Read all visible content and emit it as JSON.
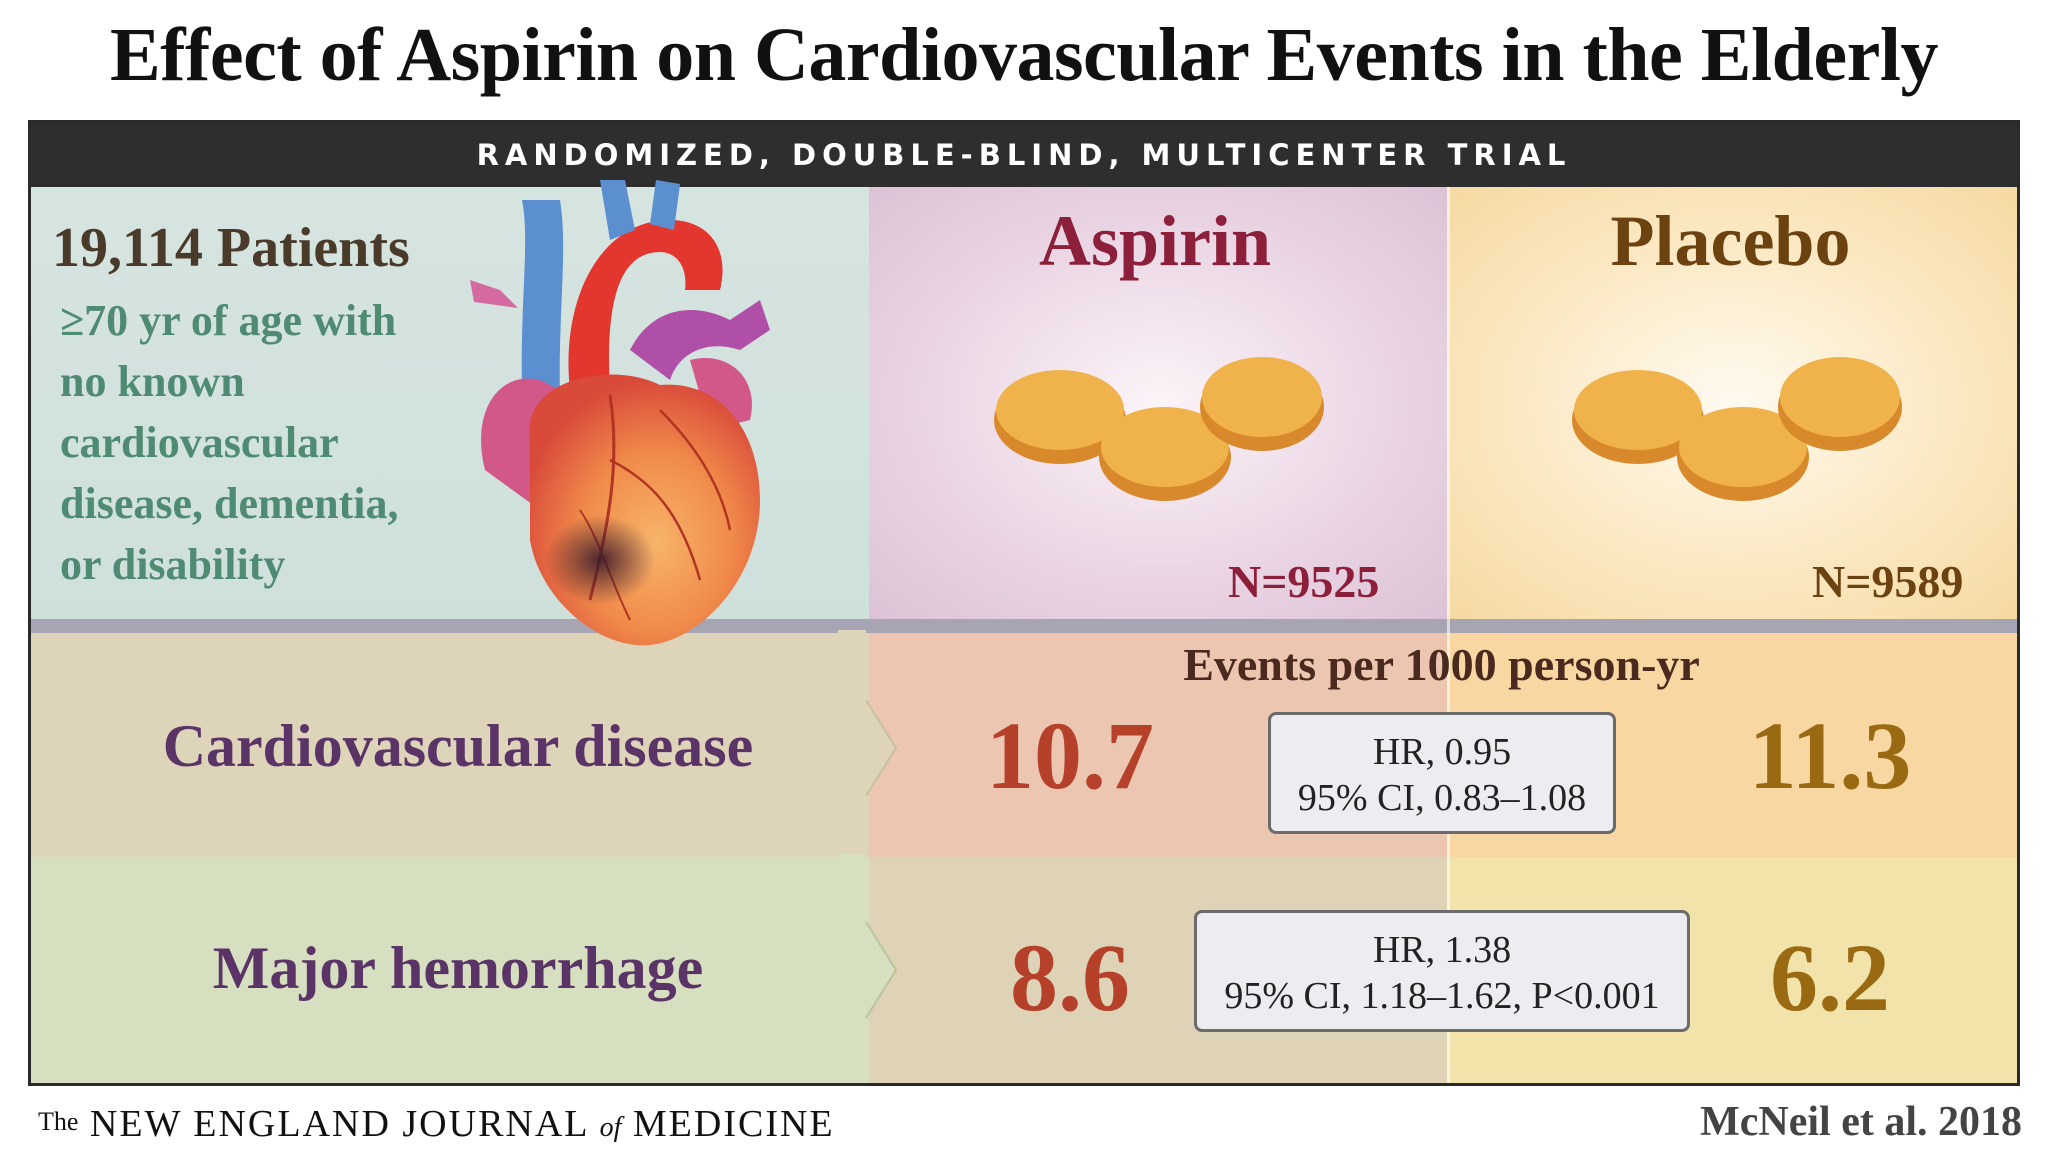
{
  "title": "Effect of Aspirin on Cardiovascular Events in the Elderly",
  "banner": "RANDOMIZED, DOUBLE-BLIND, MULTICENTER TRIAL",
  "population": {
    "count": "19,114 Patients",
    "criteria_lines": [
      "≥70 yr of age with",
      "no known",
      "cardiovascular",
      "disease, dementia,",
      "or disability"
    ]
  },
  "arms": {
    "aspirin": {
      "label": "Aspirin",
      "n": "N=9525",
      "color": "#8c1f3a"
    },
    "placebo": {
      "label": "Placebo",
      "n": "N=9589",
      "color": "#6b4210"
    }
  },
  "events_label": "Events per 1000 person-yr",
  "outcomes": [
    {
      "label": "Cardiovascular disease",
      "aspirin_rate": "10.7",
      "placebo_rate": "11.3",
      "hr_line1": "HR, 0.95",
      "hr_line2": "95% CI, 0.83–1.08"
    },
    {
      "label": "Major hemorrhage",
      "aspirin_rate": "8.6",
      "placebo_rate": "6.2",
      "hr_line1": "HR, 1.38",
      "hr_line2": "95% CI, 1.18–1.62, P<0.001"
    }
  ],
  "footer": {
    "journal_the": "The",
    "journal_name_a": "NEW ENGLAND JOURNAL",
    "journal_of": "of",
    "journal_name_b": "MEDICINE",
    "citation": "McNeil et al. 2018"
  },
  "colors": {
    "aspirin_rate": "#b5412b",
    "placebo_rate": "#9a6a12",
    "outcome_label": "#5a3466",
    "criteria_text": "#4f8a73"
  }
}
